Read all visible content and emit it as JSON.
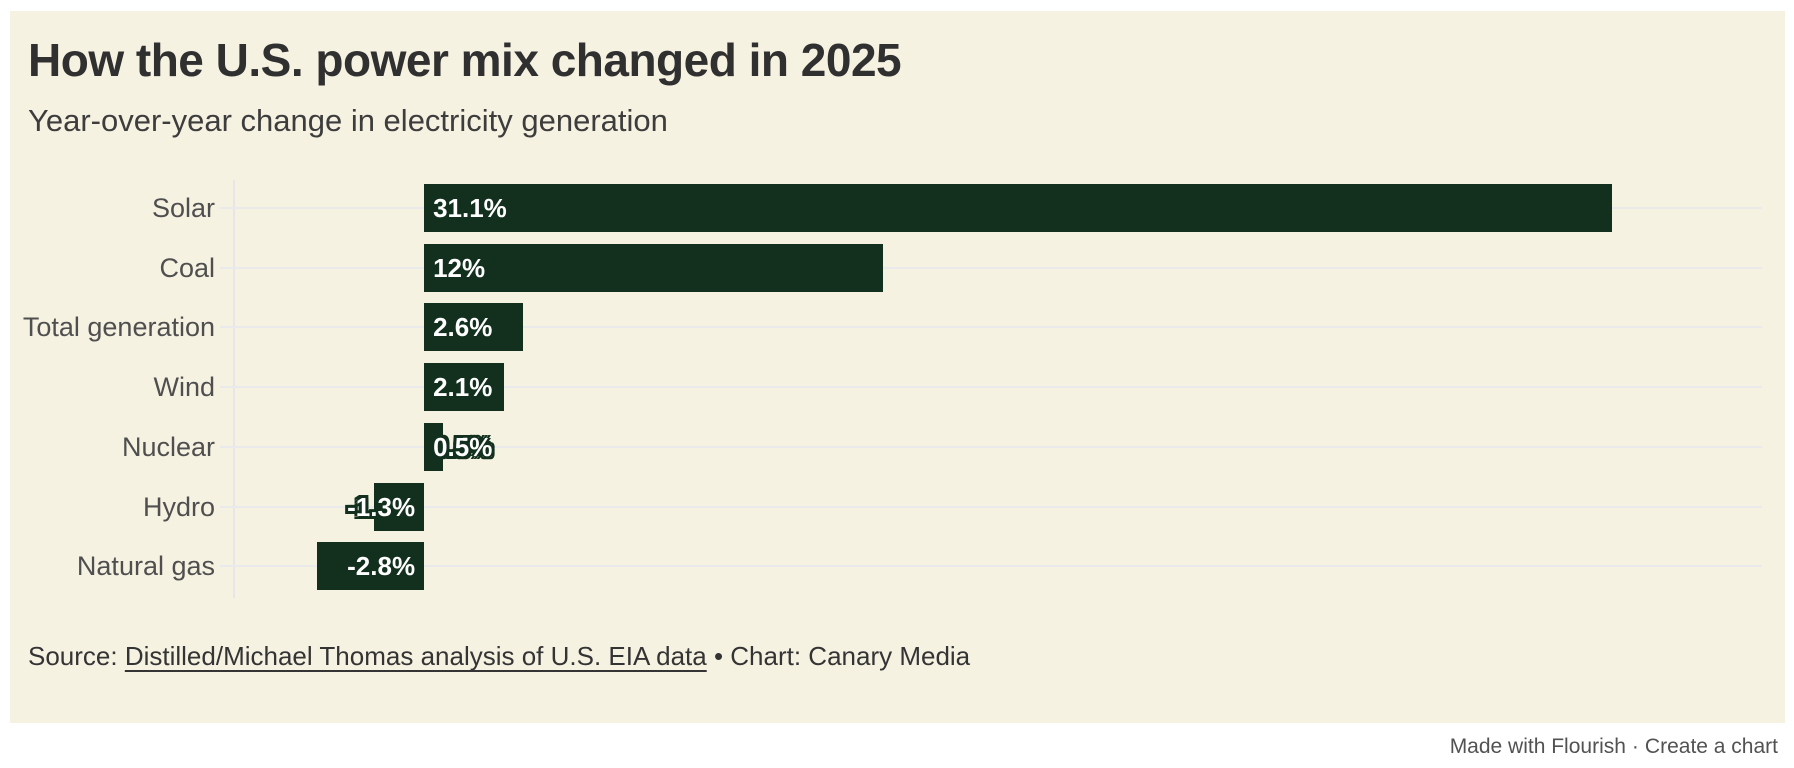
{
  "chart_data": {
    "type": "bar",
    "orientation": "horizontal",
    "title": "How the U.S. power mix changed in 2025",
    "subtitle": "Year-over-year change in electricity generation",
    "categories": [
      "Solar",
      "Coal",
      "Total generation",
      "Wind",
      "Nuclear",
      "Hydro",
      "Natural gas"
    ],
    "values": [
      31.1,
      12,
      2.6,
      2.1,
      0.5,
      -1.3,
      -2.8
    ],
    "value_labels": [
      "31.1%",
      "12%",
      "2.6%",
      "2.1%",
      "0.5%",
      "-1.3%",
      "-2.8%"
    ],
    "xlim": [
      -5,
      35
    ],
    "xlabel": "",
    "ylabel": "",
    "grid": "horizontal row lines, left boundary line, no tick labels",
    "legend": "none",
    "bar_color": "#13301e"
  },
  "source": {
    "prefix": "Source: ",
    "link_text": "Distilled/Michael Thomas analysis of U.S. EIA data",
    "suffix": " • Chart: Canary Media"
  },
  "attribution": {
    "made_with": "Made with Flourish",
    "separator": "·",
    "create_chart": "Create a chart"
  },
  "colors": {
    "page_background": "#ffffff",
    "card_background": "#f6f2e2",
    "bar": "#13301e",
    "gridline": "#eae9ec",
    "title_text": "#303030",
    "subtitle_text": "#3d3d3d",
    "category_label_text": "#4f4f4f",
    "value_label_text": "#ffffff",
    "source_text": "#343434",
    "footer_text": "#525252"
  }
}
